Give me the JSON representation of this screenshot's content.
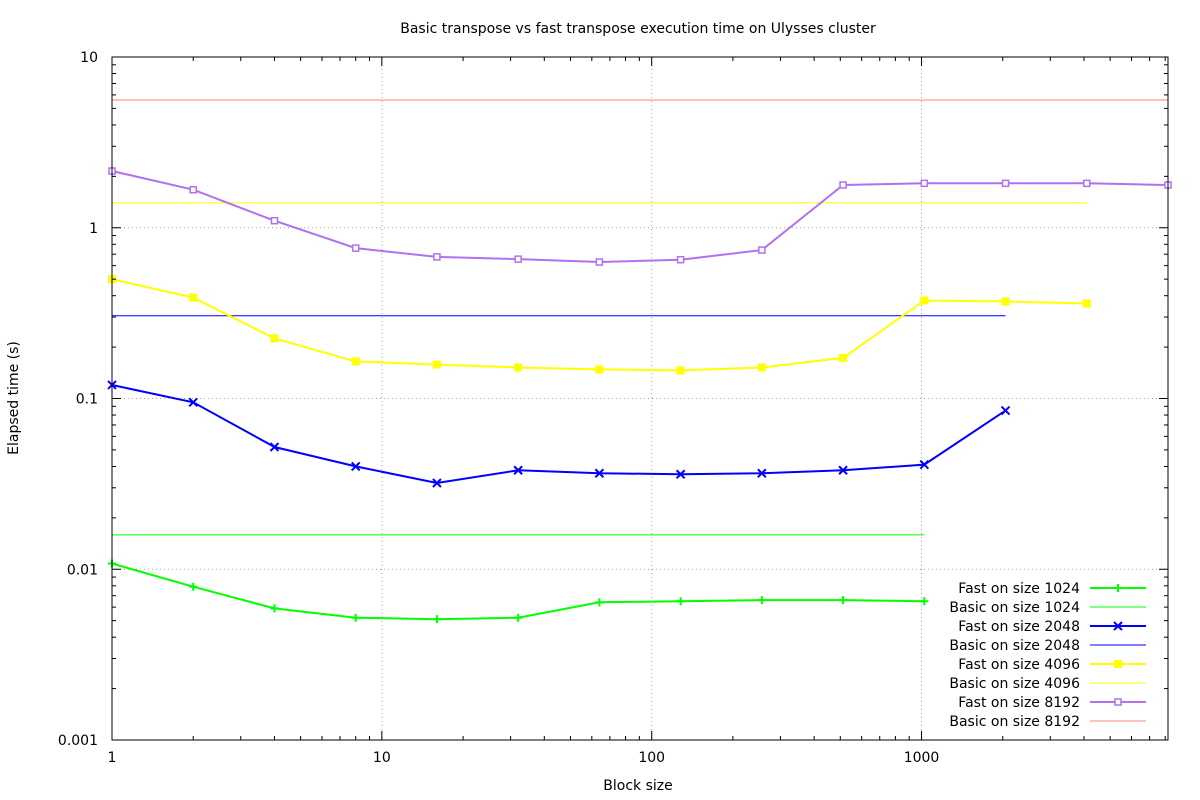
{
  "chart_data": {
    "type": "line",
    "title": "Basic transpose vs fast transpose execution time on Ulysses cluster",
    "xlabel": "Block size",
    "ylabel": "Elapsed time (s)",
    "x_scale": "log",
    "y_scale": "log",
    "xlim": [
      1,
      8192
    ],
    "ylim": [
      0.001,
      10
    ],
    "x_ticks": [
      {
        "value": 1,
        "label": "1"
      },
      {
        "value": 10,
        "label": "10"
      },
      {
        "value": 100,
        "label": "100"
      },
      {
        "value": 1000,
        "label": "1000"
      }
    ],
    "y_ticks": [
      {
        "value": 0.001,
        "label": "0.001"
      },
      {
        "value": 0.01,
        "label": "0.01"
      },
      {
        "value": 0.1,
        "label": "0.1"
      },
      {
        "value": 1,
        "label": "1"
      },
      {
        "value": 10,
        "label": "10"
      }
    ],
    "grid": true,
    "legend_position": "bottom-right",
    "series": [
      {
        "name": "Fast on size 1024",
        "color": "#00ff00",
        "marker": "plus",
        "x": [
          1,
          2,
          4,
          8,
          16,
          32,
          64,
          128,
          256,
          512,
          1024
        ],
        "y": [
          0.0108,
          0.0079,
          0.0059,
          0.0052,
          0.0051,
          0.0052,
          0.0064,
          0.0065,
          0.0066,
          0.0066,
          0.0065
        ]
      },
      {
        "name": "Basic on size 1024",
        "color": "#00ff00",
        "marker": "none",
        "x": [
          1,
          1024
        ],
        "y": [
          0.0159,
          0.0159
        ]
      },
      {
        "name": "Fast on size 2048",
        "color": "#0000ff",
        "marker": "cross",
        "x": [
          1,
          2,
          4,
          8,
          16,
          32,
          64,
          128,
          256,
          512,
          1024,
          2048
        ],
        "y": [
          0.12,
          0.095,
          0.052,
          0.04,
          0.032,
          0.038,
          0.0365,
          0.036,
          0.0365,
          0.038,
          0.041,
          0.085
        ]
      },
      {
        "name": "Basic on size 2048",
        "color": "#0000ff",
        "marker": "none",
        "x": [
          1,
          2048
        ],
        "y": [
          0.305,
          0.305
        ]
      },
      {
        "name": "Fast on size 4096",
        "color": "#ffff00",
        "marker": "square-filled",
        "x": [
          1,
          2,
          4,
          8,
          16,
          32,
          64,
          128,
          256,
          512,
          1024,
          2048,
          4096
        ],
        "y": [
          0.5,
          0.39,
          0.225,
          0.165,
          0.158,
          0.152,
          0.148,
          0.146,
          0.152,
          0.173,
          0.375,
          0.37,
          0.36
        ]
      },
      {
        "name": "Basic on size 4096",
        "color": "#ffff00",
        "marker": "none",
        "x": [
          1,
          4096
        ],
        "y": [
          1.4,
          1.4
        ]
      },
      {
        "name": "Fast on size 8192",
        "color": "#b070f0",
        "marker": "square-open",
        "x": [
          1,
          2,
          4,
          8,
          16,
          32,
          64,
          128,
          256,
          512,
          1024,
          2048,
          4096,
          8192
        ],
        "y": [
          2.15,
          1.67,
          1.1,
          0.76,
          0.675,
          0.655,
          0.63,
          0.65,
          0.74,
          1.78,
          1.82,
          1.82,
          1.82,
          1.78
        ]
      },
      {
        "name": "Basic on size 8192",
        "color": "#ff8080",
        "marker": "none",
        "x": [
          1,
          8192
        ],
        "y": [
          5.6,
          5.6
        ]
      }
    ]
  }
}
